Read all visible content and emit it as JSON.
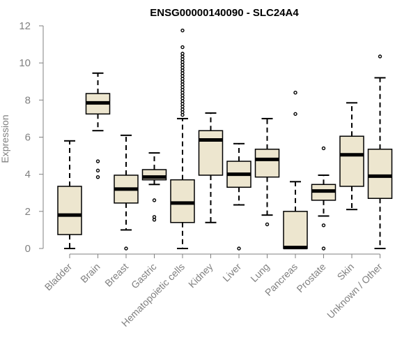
{
  "chart_data": {
    "type": "boxplot",
    "title": "ENSG00000140090 - SLC24A4",
    "xlabel": "",
    "ylabel": "Expression",
    "ylim": [
      0,
      12
    ],
    "yticks": [
      0,
      2,
      4,
      6,
      8,
      10,
      12
    ],
    "colors": {
      "box_fill": "#ede6cf",
      "stroke": "#000000",
      "axis": "#808080",
      "tick_label": "#808080",
      "outlier": "#000000"
    },
    "categories": [
      "Bladder",
      "Brain",
      "Breast",
      "Gastric",
      "Hematopoietic cells",
      "Kidney",
      "Liver",
      "Lung",
      "Pancreas",
      "Prostate",
      "Skin",
      "Unknown / Other"
    ],
    "boxes": [
      {
        "name": "Bladder",
        "lower_whisker": 0.0,
        "q1": 0.75,
        "median": 1.8,
        "q3": 3.35,
        "upper_whisker": 5.8,
        "outliers": []
      },
      {
        "name": "Brain",
        "lower_whisker": 6.35,
        "q1": 7.25,
        "median": 7.85,
        "q3": 8.35,
        "upper_whisker": 9.45,
        "outliers": [
          4.7,
          4.2,
          3.85
        ]
      },
      {
        "name": "Breast",
        "lower_whisker": 1.0,
        "q1": 2.45,
        "median": 3.2,
        "q3": 3.95,
        "upper_whisker": 6.1,
        "outliers": [
          0.0
        ]
      },
      {
        "name": "Gastric",
        "lower_whisker": 3.45,
        "q1": 3.7,
        "median": 3.85,
        "q3": 4.25,
        "upper_whisker": 5.15,
        "outliers": [
          2.6,
          1.7,
          1.55
        ]
      },
      {
        "name": "Hematopoietic cells",
        "lower_whisker": 0.0,
        "q1": 1.4,
        "median": 2.45,
        "q3": 3.7,
        "upper_whisker": 7.0,
        "outliers": [
          7.2,
          7.35,
          7.5,
          7.65,
          7.8,
          7.95,
          8.1,
          8.25,
          8.4,
          8.55,
          8.7,
          8.85,
          9.0,
          9.15,
          9.3,
          9.45,
          9.6,
          9.75,
          9.9,
          10.05,
          10.2,
          10.35,
          10.5,
          10.85,
          11.75
        ]
      },
      {
        "name": "Kidney",
        "lower_whisker": 1.4,
        "q1": 3.95,
        "median": 5.85,
        "q3": 6.35,
        "upper_whisker": 7.3,
        "outliers": []
      },
      {
        "name": "Liver",
        "lower_whisker": 2.35,
        "q1": 3.3,
        "median": 4.0,
        "q3": 4.7,
        "upper_whisker": 5.65,
        "outliers": [
          0.0
        ]
      },
      {
        "name": "Lung",
        "lower_whisker": 1.8,
        "q1": 3.85,
        "median": 4.8,
        "q3": 5.35,
        "upper_whisker": 7.0,
        "outliers": [
          1.3
        ]
      },
      {
        "name": "Pancreas",
        "lower_whisker": 0.0,
        "q1": 0.0,
        "median": 0.05,
        "q3": 2.0,
        "upper_whisker": 3.6,
        "outliers": [
          7.25,
          8.4
        ]
      },
      {
        "name": "Prostate",
        "lower_whisker": 1.75,
        "q1": 2.6,
        "median": 3.1,
        "q3": 3.45,
        "upper_whisker": 3.95,
        "outliers": [
          5.4,
          1.25,
          0.0
        ]
      },
      {
        "name": "Skin",
        "lower_whisker": 2.1,
        "q1": 3.35,
        "median": 5.05,
        "q3": 6.05,
        "upper_whisker": 7.85,
        "outliers": []
      },
      {
        "name": "Unknown / Other",
        "lower_whisker": 0.0,
        "q1": 2.7,
        "median": 3.9,
        "q3": 5.35,
        "upper_whisker": 9.2,
        "outliers": [
          10.35
        ]
      }
    ]
  }
}
